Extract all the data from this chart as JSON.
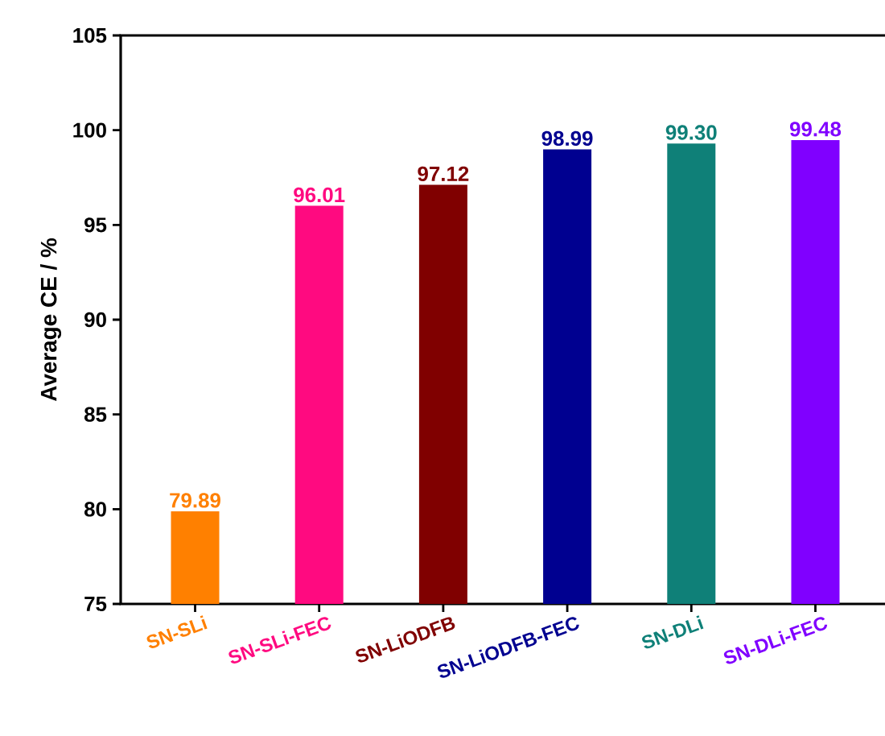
{
  "chart_data": {
    "type": "bar",
    "ylabel": "Average CE / %",
    "categories": [
      "SN-SLi",
      "SN-SLi-FEC",
      "SN-LiODFB",
      "SN-LiODFB-FEC",
      "SN-DLi",
      "SN-DLi-FEC"
    ],
    "values": [
      79.89,
      96.01,
      97.12,
      98.99,
      99.3,
      99.48
    ],
    "colors": [
      "#ff8000",
      "#ff0a80",
      "#800000",
      "#000090",
      "#0f8078",
      "#8000ff"
    ],
    "value_labels": [
      "79.89",
      "96.01",
      "97.12",
      "98.99",
      "99.30",
      "99.48"
    ],
    "ylim": [
      75,
      105
    ],
    "yticks": [
      75,
      80,
      85,
      90,
      95,
      100,
      105
    ],
    "grid": false
  }
}
